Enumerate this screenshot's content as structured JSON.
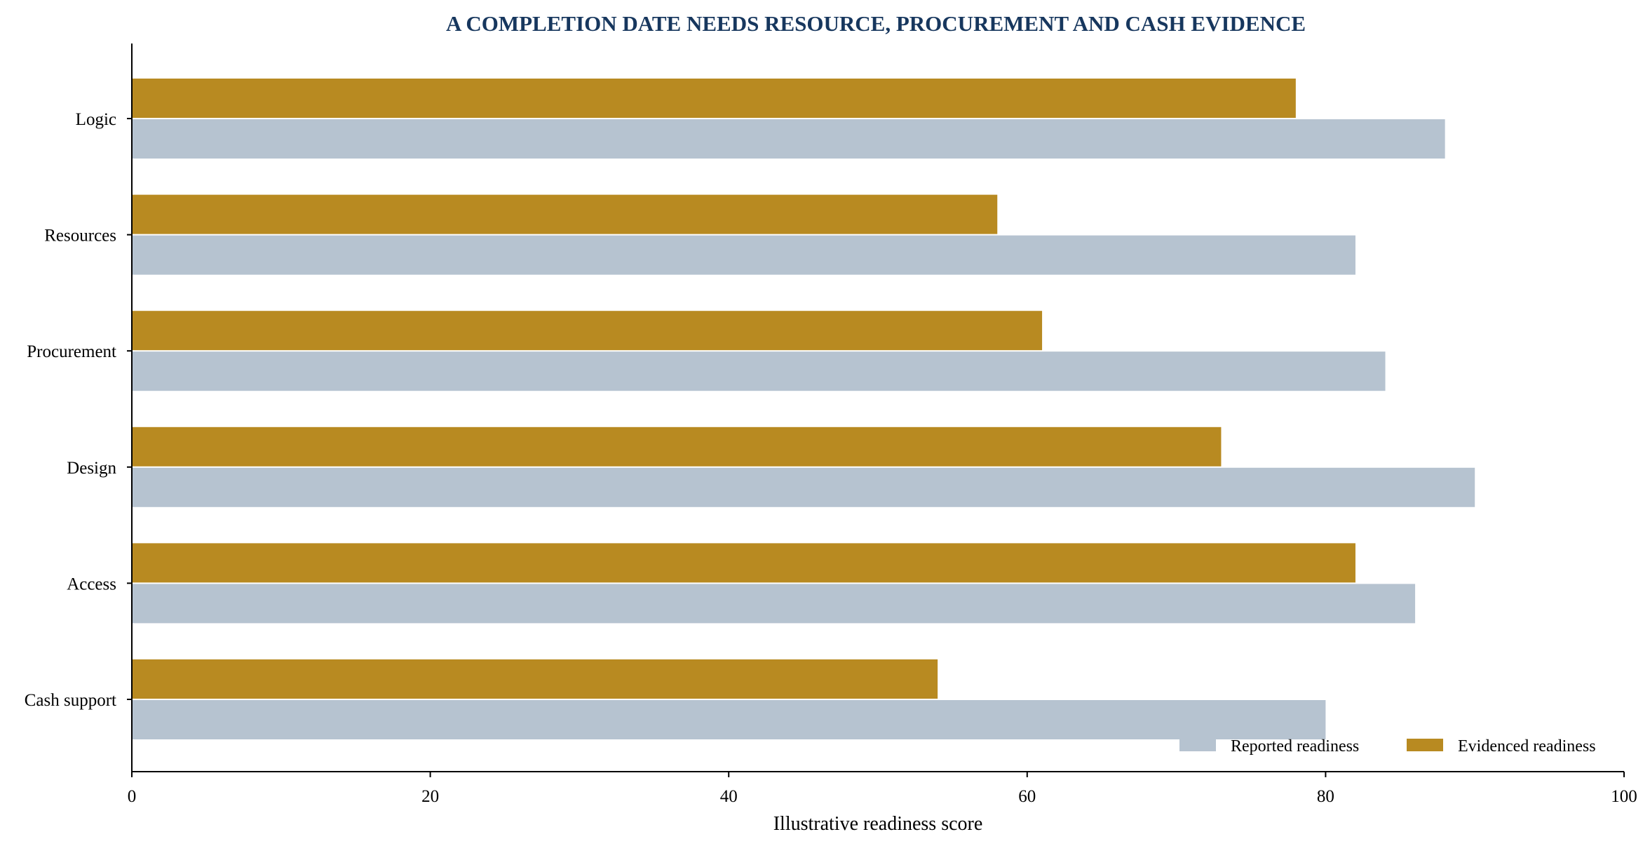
{
  "chart_data": {
    "type": "bar",
    "orientation": "horizontal",
    "title": "A COMPLETION DATE NEEDS RESOURCE, PROCUREMENT AND CASH EVIDENCE",
    "xlabel": "Illustrative readiness score",
    "ylabel": "",
    "xlim": [
      0,
      100
    ],
    "xticks": [
      0,
      20,
      40,
      60,
      80,
      100
    ],
    "grid": false,
    "legend_position": "bottom-right",
    "categories": [
      "Logic",
      "Resources",
      "Procurement",
      "Design",
      "Access",
      "Cash support"
    ],
    "series": [
      {
        "name": "Reported readiness",
        "color": "#b6c3d0",
        "values": [
          88,
          82,
          84,
          90,
          86,
          80
        ]
      },
      {
        "name": "Evidenced readiness",
        "color": "#b88a21",
        "values": [
          78,
          58,
          61,
          73,
          82,
          54
        ]
      }
    ]
  }
}
